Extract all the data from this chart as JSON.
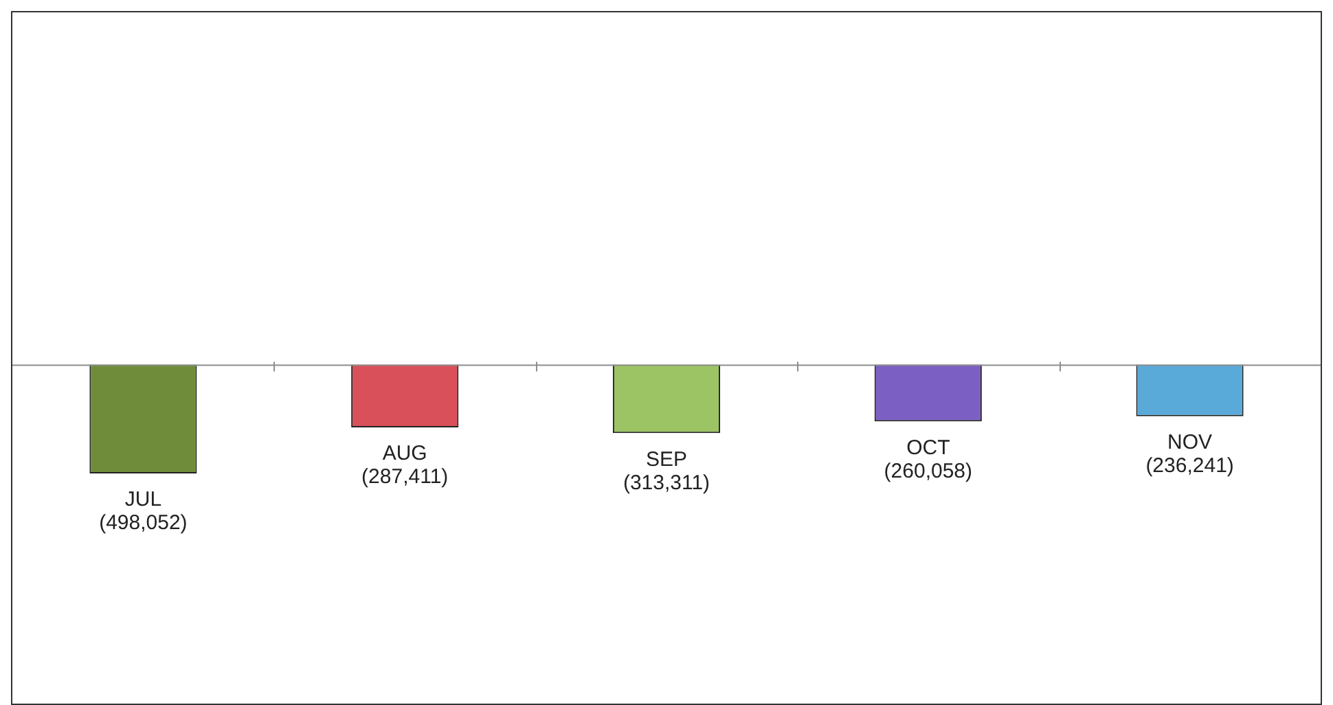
{
  "chart_data": {
    "type": "bar",
    "categories": [
      "JUL",
      "AUG",
      "SEP",
      "OCT",
      "NOV"
    ],
    "values": [
      -498052,
      -287411,
      -313311,
      -260058,
      -236241
    ],
    "value_labels": [
      "(498,052)",
      "(287,411)",
      "(313,311)",
      "(260,058)",
      "(236,241)"
    ],
    "colors": [
      "#6f8c3a",
      "#d9505a",
      "#9cc464",
      "#7b5fc2",
      "#5aaad9"
    ],
    "ylim": [
      -1550000,
      1610000
    ]
  }
}
